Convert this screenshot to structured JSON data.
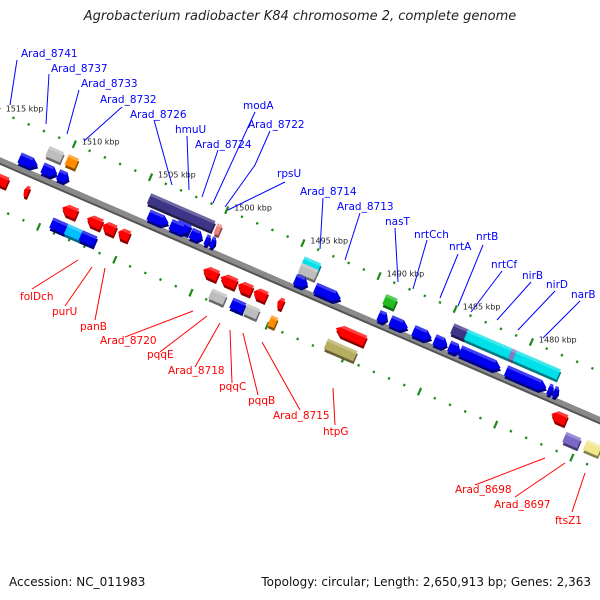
{
  "title": "Agrobacterium radiobacter K84 chromosome 2, complete genome",
  "footer": {
    "accession": "Accession: NC_011983",
    "summary": "Topology: circular; Length: 2,650,913 bp; Genes: 2,363"
  },
  "colors": {
    "forward_label": "#0000ff",
    "reverse_label": "#ff0000",
    "backbone": "#808080",
    "tick": "#1a8a1a"
  },
  "scale": {
    "unit": "kbp",
    "labels": [
      "1515 kbp",
      "1510 kbp",
      "1505 kbp",
      "1500 kbp",
      "1495 kbp",
      "1490 kbp",
      "1485 kbp",
      "1480 kbp"
    ]
  },
  "forward_genes": [
    "Arad_8741",
    "Arad_8737",
    "Arad_8733",
    "Arad_8732",
    "Arad_8726",
    "hmuU",
    "Arad_8724",
    "modA",
    "Arad_8722",
    "rpsU",
    "Arad_8714",
    "Arad_8713",
    "nasT",
    "nrtCch",
    "nrtA",
    "nrtB",
    "nrtCf",
    "nirB",
    "nirD",
    "narB"
  ],
  "reverse_genes": [
    "folDch",
    "purU",
    "panB",
    "Arad_8720",
    "pqqE",
    "Arad_8718",
    "pqqC",
    "pqqB",
    "Arad_8715",
    "htpG",
    "Arad_8698",
    "Arad_8697",
    "ftsZ1"
  ]
}
